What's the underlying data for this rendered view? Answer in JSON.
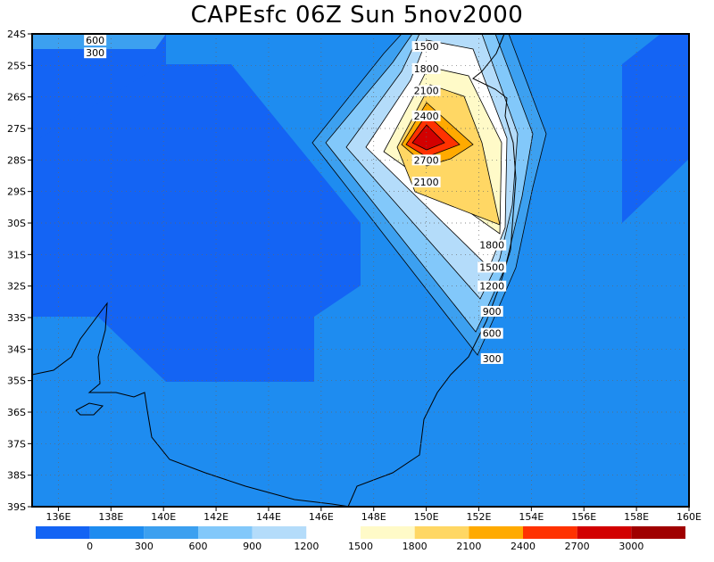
{
  "chart_data": {
    "type": "heatmap",
    "title": "CAPEsfc 06Z Sun 5nov2000",
    "xlabel": "",
    "ylabel": "",
    "x_ticks": [
      "136E",
      "138E",
      "140E",
      "142E",
      "144E",
      "146E",
      "148E",
      "150E",
      "152E",
      "154E",
      "156E",
      "158E",
      "160E"
    ],
    "y_ticks": [
      "24S",
      "25S",
      "26S",
      "27S",
      "28S",
      "29S",
      "30S",
      "31S",
      "32S",
      "33S",
      "34S",
      "35S",
      "36S",
      "37S",
      "38S",
      "39S"
    ],
    "xlim": [
      135,
      160
    ],
    "ylim": [
      -39,
      -24
    ],
    "grid": true,
    "colorbar": {
      "labels": [
        "0",
        "300",
        "600",
        "900",
        "1200",
        "1500",
        "1800",
        "2100",
        "2400",
        "2700",
        "3000"
      ],
      "colors": [
        "#1464f4",
        "#1e8cf0",
        "#3ca0f0",
        "#82c8fa",
        "#b4dcfa",
        "#ffffff",
        "#fffac8",
        "#ffd764",
        "#ffaa00",
        "#ff3200",
        "#d20000",
        "#a00000"
      ]
    },
    "contour_labels": [
      {
        "text": "600",
        "lon": 137.4,
        "lat": -24.2
      },
      {
        "text": "300",
        "lon": 137.4,
        "lat": -24.6
      },
      {
        "text": "1500",
        "lon": 150.0,
        "lat": -24.4
      },
      {
        "text": "1800",
        "lon": 150.0,
        "lat": -25.1
      },
      {
        "text": "2100",
        "lon": 150.0,
        "lat": -25.8
      },
      {
        "text": "2400",
        "lon": 150.0,
        "lat": -26.6
      },
      {
        "text": "2700",
        "lon": 150.0,
        "lat": -28.0
      },
      {
        "text": "2100",
        "lon": 150.0,
        "lat": -28.7
      },
      {
        "text": "1800",
        "lon": 152.5,
        "lat": -30.7
      },
      {
        "text": "1500",
        "lon": 152.5,
        "lat": -31.4
      },
      {
        "text": "1200",
        "lon": 152.5,
        "lat": -32.0
      },
      {
        "text": "900",
        "lon": 152.5,
        "lat": -32.8
      },
      {
        "text": "600",
        "lon": 152.5,
        "lat": -33.5
      },
      {
        "text": "300",
        "lon": 152.5,
        "lat": -34.3
      }
    ]
  }
}
